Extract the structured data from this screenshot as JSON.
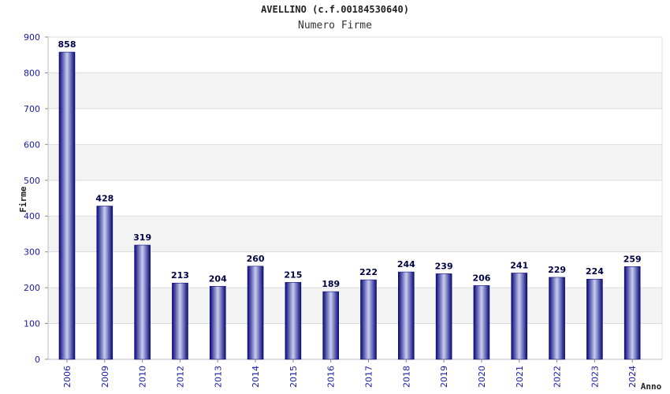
{
  "chart_data": {
    "type": "bar",
    "title": "AVELLINO (c.f.00184530640)",
    "subtitle": "Numero Firme",
    "ylabel": "Firme",
    "xlabel": "Anno",
    "ylim": [
      0,
      900
    ],
    "yticks": [
      0,
      100,
      200,
      300,
      400,
      500,
      600,
      700,
      800,
      900
    ],
    "grid": true,
    "categories": [
      "2006",
      "2009",
      "2010",
      "2012",
      "2013",
      "2014",
      "2015",
      "2016",
      "2017",
      "2018",
      "2019",
      "2020",
      "2021",
      "2022",
      "2023",
      "2024"
    ],
    "values": [
      858,
      428,
      319,
      213,
      204,
      260,
      215,
      189,
      222,
      244,
      239,
      206,
      241,
      229,
      224,
      259
    ],
    "colors": {
      "bar_dark": "#0a0a7a",
      "bar_light": "#c8cdf0",
      "band": "#f3f3f3",
      "grid": "#dddddd"
    }
  }
}
